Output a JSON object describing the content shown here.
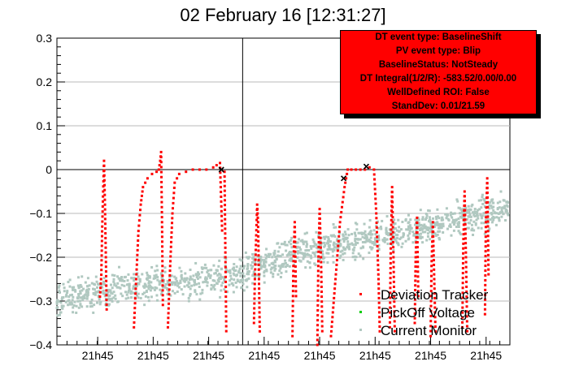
{
  "title": "02 February 16 [12:31:27]",
  "info_box": {
    "lines": [
      "DT event type: BaselineShift",
      "PV event type: Blip",
      "BaselineStatus: NotSteady",
      "DT Integral(1/2/R): -583.52/0.00/0.00",
      "WellDefined ROI: False",
      "StandDev: 0.01/21.59"
    ],
    "background": "#ff0000"
  },
  "chart_data": {
    "type": "scatter",
    "title": "02 February 16 [12:31:27]",
    "xlabel": "",
    "ylabel": "",
    "ylim": [
      -0.4,
      0.3
    ],
    "y_ticks": [
      "0.3",
      "0.2",
      "0.1",
      "0",
      "−0.1",
      "−0.2",
      "−0.3",
      "−0.4"
    ],
    "x_tick_labels": [
      "21h45",
      "21h45",
      "21h45",
      "21h45",
      "21h45",
      "21h45",
      "21h45",
      "21h45"
    ],
    "grid": true,
    "legend_position": "bottom-right",
    "series": [
      {
        "name": "Deviation Tracker",
        "color": "#ff0000",
        "segments": [
          {
            "x": [
              0.095,
              0.098,
              0.1,
              0.102,
              0.104,
              0.106,
              0.108,
              0.11
            ],
            "y": [
              -0.29,
              -0.24,
              -0.13,
              -0.05,
              0.02,
              -0.08,
              -0.2,
              -0.33
            ]
          },
          {
            "x": [
              0.17,
              0.175,
              0.18,
              0.185,
              0.19,
              0.2,
              0.21,
              0.22,
              0.225,
              0.228,
              0.23,
              0.232,
              0.234
            ],
            "y": [
              -0.36,
              -0.25,
              -0.14,
              -0.08,
              -0.04,
              -0.02,
              -0.01,
              -0.005,
              0.0,
              0.02,
              0.04,
              -0.12,
              -0.32
            ]
          },
          {
            "x": [
              0.245,
              0.25,
              0.255,
              0.26,
              0.27,
              0.285,
              0.3,
              0.315,
              0.33,
              0.345,
              0.36,
              0.365
            ],
            "y": [
              -0.36,
              -0.22,
              -0.1,
              -0.03,
              -0.01,
              -0.005,
              0.0,
              0.0,
              0.0,
              0.005,
              0.015,
              -0.15
            ]
          },
          {
            "x": [
              0.37,
              0.372,
              0.374
            ],
            "y": [
              -0.005,
              -0.2,
              -0.38
            ]
          },
          {
            "x": [
              0.435,
              0.437,
              0.44,
              0.442,
              0.444,
              0.446,
              0.448
            ],
            "y": [
              -0.35,
              -0.25,
              -0.15,
              -0.08,
              -0.12,
              -0.25,
              -0.38
            ]
          },
          {
            "x": [
              0.52,
              0.522,
              0.525,
              0.528
            ],
            "y": [
              -0.38,
              -0.22,
              -0.12,
              -0.3
            ]
          },
          {
            "x": [
              0.575,
              0.577,
              0.58,
              0.583,
              0.586
            ],
            "y": [
              -0.4,
              -0.22,
              -0.09,
              -0.2,
              -0.38
            ]
          },
          {
            "x": [
              0.605,
              0.615,
              0.625,
              0.635,
              0.642,
              0.65,
              0.66,
              0.67,
              0.68,
              0.69,
              0.7,
              0.705,
              0.71,
              0.713
            ],
            "y": [
              -0.38,
              -0.25,
              -0.12,
              -0.04,
              0.0,
              0.0,
              0.0,
              0.0,
              0.0,
              0.005,
              0.0,
              -0.1,
              -0.25,
              -0.38
            ]
          },
          {
            "x": [
              0.735,
              0.737,
              0.74,
              0.743,
              0.746
            ],
            "y": [
              -0.36,
              -0.18,
              -0.04,
              -0.2,
              -0.38
            ]
          },
          {
            "x": [
              0.79,
              0.792,
              0.795,
              0.798
            ],
            "y": [
              -0.35,
              -0.2,
              -0.11,
              -0.3
            ]
          },
          {
            "x": [
              0.825,
              0.827,
              0.83,
              0.833,
              0.836
            ],
            "y": [
              -0.38,
              -0.22,
              -0.12,
              -0.25,
              -0.38
            ]
          },
          {
            "x": [
              0.895,
              0.897,
              0.9,
              0.903,
              0.906
            ],
            "y": [
              -0.36,
              -0.18,
              -0.05,
              -0.2,
              -0.38
            ]
          },
          {
            "x": [
              0.945,
              0.947,
              0.95,
              0.953
            ],
            "y": [
              -0.33,
              -0.12,
              -0.02,
              -0.25
            ]
          }
        ]
      },
      {
        "name": "PickOff Voltage",
        "color": "#00cc00",
        "segments": []
      },
      {
        "name": "Current Monitor",
        "color": "#b0c8c0",
        "trend": {
          "x": [
            0.0,
            0.15,
            0.3,
            0.4,
            0.5,
            0.6,
            0.7,
            0.8,
            0.9,
            1.0
          ],
          "y": [
            -0.3,
            -0.265,
            -0.26,
            -0.24,
            -0.2,
            -0.175,
            -0.155,
            -0.135,
            -0.11,
            -0.085
          ]
        },
        "spread": 0.035
      }
    ],
    "markers": {
      "color": "#000000",
      "x": [
        0.363,
        0.633,
        0.683
      ],
      "y": [
        0.0,
        -0.02,
        0.007
      ]
    }
  }
}
